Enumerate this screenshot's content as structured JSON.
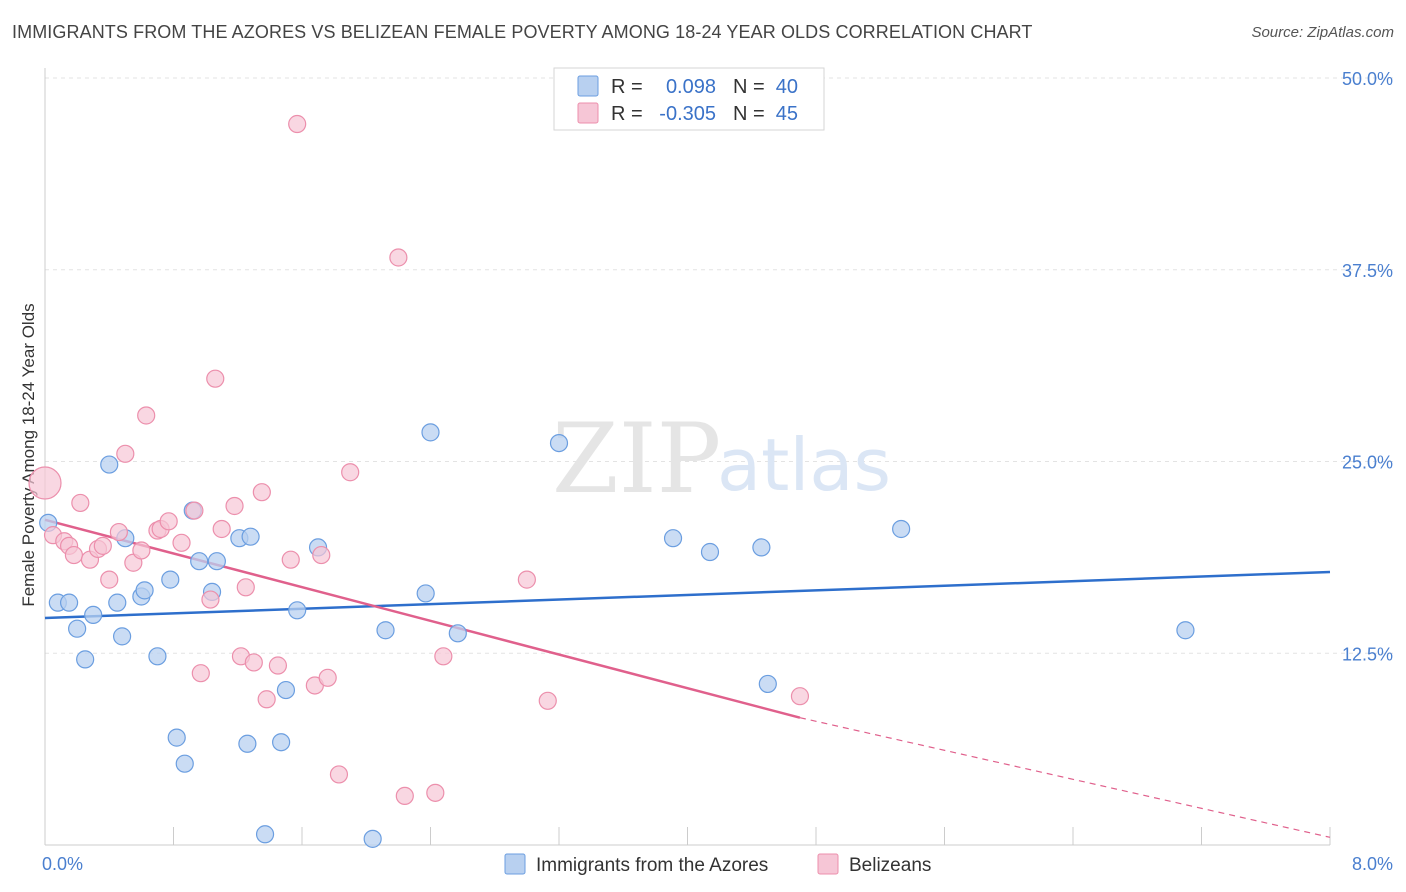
{
  "title": "IMMIGRANTS FROM THE AZORES VS BELIZEAN FEMALE POVERTY AMONG 18-24 YEAR OLDS CORRELATION CHART",
  "source": "Source: ZipAtlas.com",
  "watermark": {
    "zip": "ZIP",
    "atlas": "atlas"
  },
  "colors": {
    "blue_fill": "#b8d0f0",
    "blue_stroke": "#6b9ee0",
    "blue_line": "#2e6fcc",
    "pink_fill": "#f6c6d6",
    "pink_stroke": "#ec8fac",
    "pink_line": "#e0608c",
    "grid": "#e3e3e3",
    "axis_text": "#4a7fcf"
  },
  "legend": {
    "rows": [
      {
        "r_label": "R =",
        "r_value": "0.098",
        "n_label": "N =",
        "n_value": "40"
      },
      {
        "r_label": "R =",
        "r_value": "-0.305",
        "n_label": "N =",
        "n_value": "45"
      }
    ]
  },
  "bottom_legend": [
    "Immigrants from the Azores",
    "Belizeans"
  ],
  "chart_data": {
    "type": "scatter",
    "title": "IMMIGRANTS FROM THE AZORES VS BELIZEAN FEMALE POVERTY AMONG 18-24 YEAR OLDS CORRELATION CHART",
    "xlabel": "",
    "ylabel": "Female Poverty Among 18-24 Year Olds",
    "xlim": [
      0,
      8
    ],
    "ylim": [
      0,
      50
    ],
    "x_tick_labels": [
      "0.0%",
      "8.0%"
    ],
    "y_ticks": [
      12.5,
      25.0,
      37.5,
      50.0
    ],
    "y_tick_labels": [
      "12.5%",
      "25.0%",
      "37.5%",
      "50.0%"
    ],
    "series": [
      {
        "name": "Immigrants from the Azores",
        "color": "blue",
        "points": [
          [
            0.02,
            21.0
          ],
          [
            0.08,
            15.8
          ],
          [
            0.15,
            15.8
          ],
          [
            0.2,
            14.1
          ],
          [
            0.25,
            12.1
          ],
          [
            0.3,
            15.0
          ],
          [
            0.4,
            24.8
          ],
          [
            0.45,
            15.8
          ],
          [
            0.48,
            13.6
          ],
          [
            0.5,
            20.0
          ],
          [
            0.6,
            16.2
          ],
          [
            0.62,
            16.6
          ],
          [
            0.7,
            12.3
          ],
          [
            0.78,
            17.3
          ],
          [
            0.82,
            7.0
          ],
          [
            0.87,
            5.3
          ],
          [
            0.92,
            21.8
          ],
          [
            0.96,
            18.5
          ],
          [
            1.04,
            16.5
          ],
          [
            1.07,
            18.5
          ],
          [
            1.21,
            20.0
          ],
          [
            1.26,
            6.6
          ],
          [
            1.28,
            20.1
          ],
          [
            1.37,
            0.7
          ],
          [
            1.47,
            6.7
          ],
          [
            1.5,
            10.1
          ],
          [
            1.57,
            15.3
          ],
          [
            1.7,
            19.4
          ],
          [
            2.04,
            0.4
          ],
          [
            2.12,
            14.0
          ],
          [
            2.37,
            16.4
          ],
          [
            2.4,
            26.9
          ],
          [
            2.57,
            13.8
          ],
          [
            3.2,
            26.2
          ],
          [
            3.91,
            20.0
          ],
          [
            4.14,
            19.1
          ],
          [
            4.46,
            19.4
          ],
          [
            4.5,
            10.5
          ],
          [
            5.33,
            20.6
          ],
          [
            7.1,
            14.0
          ]
        ],
        "trend": {
          "x": [
            0.0,
            8.0
          ],
          "y": [
            14.8,
            17.8
          ]
        }
      },
      {
        "name": "Belizeans",
        "color": "pink",
        "points": [
          [
            0.0,
            23.6
          ],
          [
            0.05,
            20.2
          ],
          [
            0.12,
            19.8
          ],
          [
            0.15,
            19.5
          ],
          [
            0.18,
            18.9
          ],
          [
            0.22,
            22.3
          ],
          [
            0.28,
            18.6
          ],
          [
            0.33,
            19.3
          ],
          [
            0.36,
            19.5
          ],
          [
            0.4,
            17.3
          ],
          [
            0.46,
            20.4
          ],
          [
            0.5,
            25.5
          ],
          [
            0.55,
            18.4
          ],
          [
            0.6,
            19.2
          ],
          [
            0.63,
            28.0
          ],
          [
            0.7,
            20.5
          ],
          [
            0.72,
            20.6
          ],
          [
            0.77,
            21.1
          ],
          [
            0.85,
            19.7
          ],
          [
            0.93,
            21.8
          ],
          [
            0.97,
            11.2
          ],
          [
            1.03,
            16.0
          ],
          [
            1.06,
            30.4
          ],
          [
            1.1,
            20.6
          ],
          [
            1.18,
            22.1
          ],
          [
            1.22,
            12.3
          ],
          [
            1.25,
            16.8
          ],
          [
            1.3,
            11.9
          ],
          [
            1.35,
            23.0
          ],
          [
            1.38,
            9.5
          ],
          [
            1.45,
            11.7
          ],
          [
            1.53,
            18.6
          ],
          [
            1.68,
            10.4
          ],
          [
            1.72,
            18.9
          ],
          [
            1.76,
            10.9
          ],
          [
            1.83,
            4.6
          ],
          [
            1.9,
            24.3
          ],
          [
            1.57,
            47.0
          ],
          [
            2.2,
            38.3
          ],
          [
            2.24,
            3.2
          ],
          [
            2.43,
            3.4
          ],
          [
            2.48,
            12.3
          ],
          [
            3.0,
            17.3
          ],
          [
            3.13,
            9.4
          ],
          [
            4.7,
            9.7
          ]
        ],
        "trend": {
          "x": [
            0.0,
            4.7
          ],
          "y": [
            21.2,
            8.3
          ],
          "dashed_to": [
            8.0,
            0.5
          ]
        }
      }
    ]
  }
}
